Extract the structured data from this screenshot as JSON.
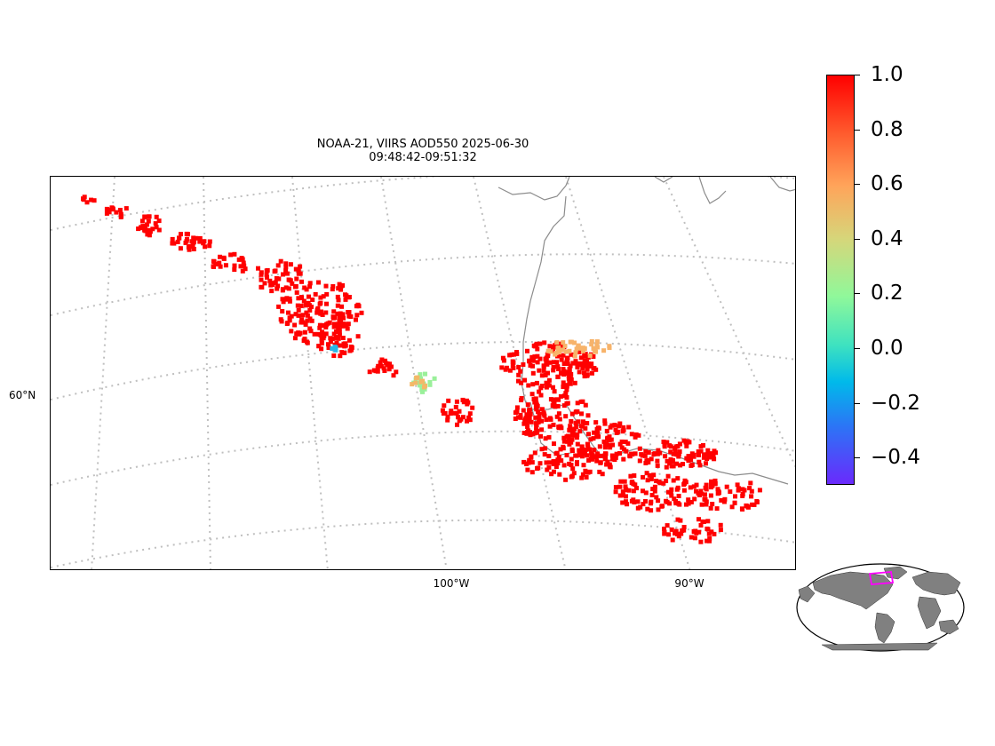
{
  "figure": {
    "title_line1": "NOAA-21, VIIRS AOD550 2025-06-30",
    "title_line2": "09:48:42-09:51:32"
  },
  "map": {
    "lat_labels": [
      "60°N"
    ],
    "lon_labels": [
      "100°W",
      "90°W"
    ],
    "coastline_color": "#8c8c8c",
    "gridline_color": "#bfbfbf",
    "dominant_pixel_color": "#ff0000"
  },
  "colorbar": {
    "colormap": "rainbow",
    "vmin": -0.5,
    "vmax": 1.0,
    "tick_labels": [
      "1.0",
      "0.8",
      "0.6",
      "0.4",
      "0.2",
      "0.0",
      "−0.2",
      "−0.4"
    ],
    "tick_values": [
      1.0,
      0.8,
      0.6,
      0.4,
      0.2,
      0.0,
      -0.2,
      -0.4
    ]
  },
  "inset": {
    "projection": "globe",
    "land_color": "#808080",
    "region_box_color": "#ff00ff"
  }
}
